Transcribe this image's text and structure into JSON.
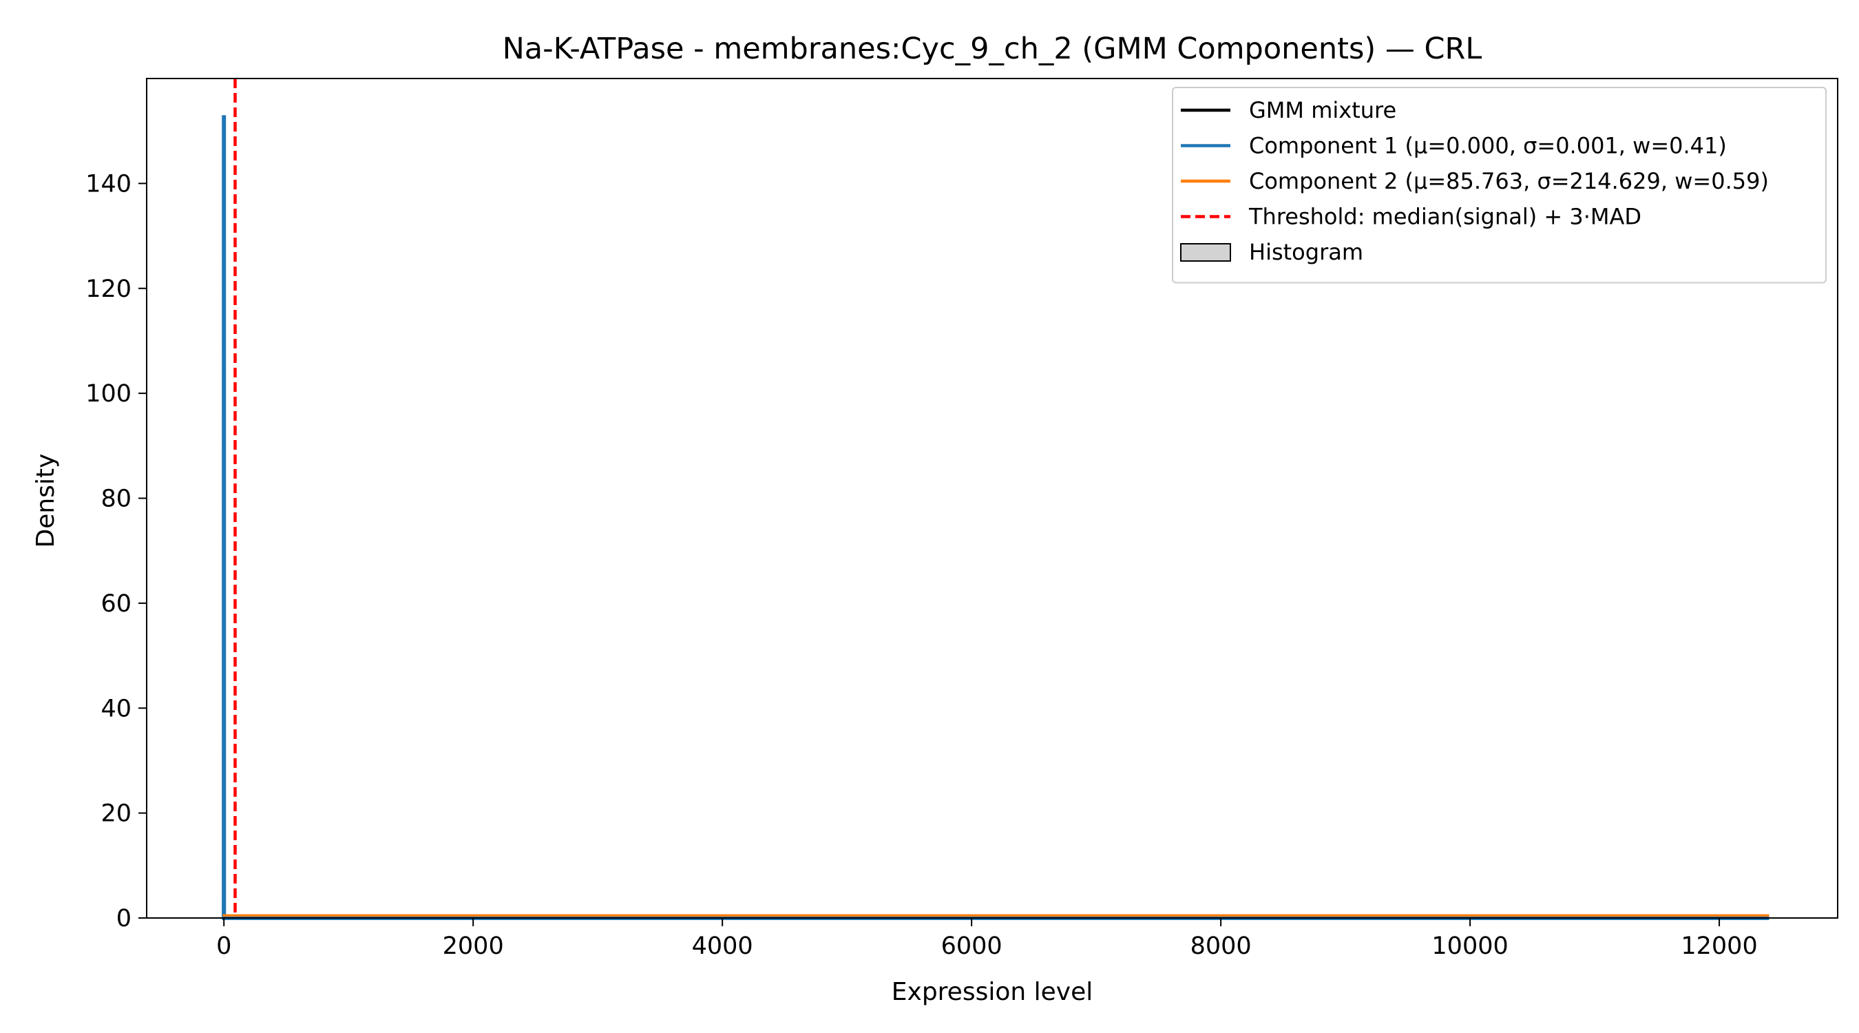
{
  "chart_data": {
    "type": "line",
    "title": "Na-K-ATPase - membranes:Cyc_9_ch_2 (GMM Components) — CRL",
    "xlabel": "Expression level",
    "ylabel": "Density",
    "xlim": [
      -620,
      12950
    ],
    "ylim": [
      0,
      160
    ],
    "xticks": [
      0,
      2000,
      4000,
      6000,
      8000,
      10000,
      12000
    ],
    "yticks": [
      0,
      20,
      40,
      60,
      80,
      100,
      120,
      140
    ],
    "grid": false,
    "legend_position": "top-right",
    "colors": {
      "mixture": "#000000",
      "component1": "#1f77b4",
      "component2": "#ff7f0e",
      "threshold": "#ff0000",
      "histogram_fill": "#d3d3d3",
      "histogram_edge": "#000000"
    },
    "histogram": {
      "x_range": [
        0,
        12400
      ],
      "values": [
        0
      ]
    },
    "series": [
      {
        "name": "GMM mixture",
        "role": "mixture",
        "peak_x": 0,
        "peak_y": 153,
        "x_range": [
          -10,
          12400
        ],
        "tail_y": 0.5
      },
      {
        "name": "Component 1 (μ=0.000, σ=0.001, w=0.41)",
        "role": "component1",
        "peak_x": 0,
        "peak_y": 153,
        "x_range": [
          -10,
          12400
        ],
        "tail_y": 0
      },
      {
        "name": "Component 2 (μ=85.763, σ=214.629, w=0.59)",
        "role": "component2",
        "peak_x": 85.763,
        "peak_y": 0.5,
        "x_range": [
          -10,
          12400
        ],
        "tail_y": 0.5
      }
    ],
    "threshold": {
      "name": "Threshold: median(signal) + 3·MAD",
      "x": 90
    },
    "legend_entries": [
      {
        "label": "GMM mixture",
        "kind": "line",
        "color": "#000000"
      },
      {
        "label": "Component 1 (μ=0.000, σ=0.001, w=0.41)",
        "kind": "line",
        "color": "#1f77b4"
      },
      {
        "label": "Component 2 (μ=85.763, σ=214.629, w=0.59)",
        "kind": "line",
        "color": "#ff7f0e"
      },
      {
        "label": "Threshold: median(signal) + 3·MAD",
        "kind": "dashed",
        "color": "#ff0000"
      },
      {
        "label": "Histogram",
        "kind": "patch",
        "color": "#d3d3d3"
      }
    ]
  }
}
